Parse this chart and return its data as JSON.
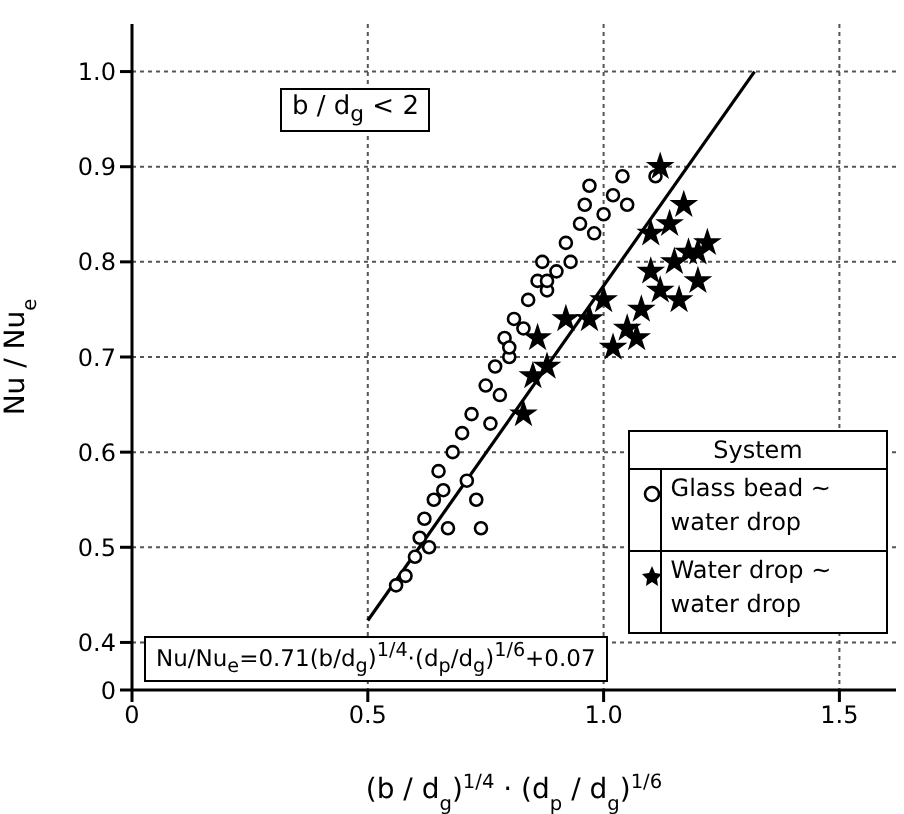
{
  "chart_data": {
    "type": "scatter",
    "xlabel": "(b / d$_{g}$)$^{1/4}$ · (d$_{p}$ / d$_{g}$)$^{1/6}$",
    "ylabel": "Nu / Nu$_{e}$",
    "xlim": [
      0,
      1.62
    ],
    "xticks": [
      0,
      0.5,
      {
        "value": 1,
        "label": "1.0"
      },
      1.5
    ],
    "ylim": [
      0.35,
      1.05
    ],
    "yticks": [
      {
        "value": 0.35,
        "label": "0"
      },
      0.4,
      0.5,
      0.6,
      0.7,
      0.8,
      0.9,
      {
        "value": 1,
        "label": "1.0"
      }
    ],
    "grid": true,
    "legend": "bottom right",
    "legend_title": "System",
    "annotations": [
      "b / d$_{g}$ < 2",
      "Nu/Nu$_{e}$=0.71(b/d$_{g}$)$^{1/4}$·(d$_{p}$/d$_{g}$)$^{1/6}$+0.07"
    ],
    "series": [
      {
        "name": "Glass bead ~ water drop",
        "color": "#000000",
        "marker": "circle",
        "x": [
          0.56,
          0.58,
          0.6,
          0.61,
          0.62,
          0.63,
          0.64,
          0.65,
          0.66,
          0.67,
          0.68,
          0.7,
          0.71,
          0.73,
          0.74,
          0.72,
          0.75,
          0.76,
          0.77,
          0.78,
          0.79,
          0.8,
          0.81,
          0.83,
          0.84,
          0.86,
          0.88,
          0.87,
          0.9,
          0.92,
          0.93,
          0.95,
          0.96,
          0.98,
          1.0,
          1.02,
          1.04,
          0.97,
          1.05,
          0.8,
          0.88,
          1.11
        ],
        "values": [
          0.46,
          0.47,
          0.49,
          0.51,
          0.53,
          0.5,
          0.55,
          0.58,
          0.56,
          0.52,
          0.6,
          0.62,
          0.57,
          0.55,
          0.52,
          0.64,
          0.67,
          0.63,
          0.69,
          0.66,
          0.72,
          0.7,
          0.74,
          0.73,
          0.76,
          0.78,
          0.77,
          0.8,
          0.79,
          0.82,
          0.8,
          0.84,
          0.86,
          0.83,
          0.85,
          0.87,
          0.89,
          0.88,
          0.86,
          0.71,
          0.78,
          0.89
        ]
      },
      {
        "name": "Water drop ~ water drop",
        "color": "#000000",
        "marker": "star",
        "x": [
          1.12,
          1.17,
          1.14,
          1.18,
          1.2,
          1.22,
          1.15,
          1.1,
          1.12,
          1.16,
          1.08,
          1.05,
          1.07,
          1.02,
          1.0,
          0.97,
          0.92,
          0.88,
          0.85,
          1.2,
          1.1,
          0.83,
          0.86
        ],
        "values": [
          0.9,
          0.86,
          0.84,
          0.81,
          0.81,
          0.82,
          0.8,
          0.79,
          0.77,
          0.76,
          0.75,
          0.73,
          0.72,
          0.71,
          0.76,
          0.74,
          0.74,
          0.69,
          0.68,
          0.78,
          0.83,
          0.64,
          0.72
        ]
      },
      {
        "type": "line",
        "color": "#000000",
        "marker": "none",
        "x": [
          0.5,
          1.32
        ],
        "values": [
          0.423,
          1.0
        ]
      }
    ]
  }
}
